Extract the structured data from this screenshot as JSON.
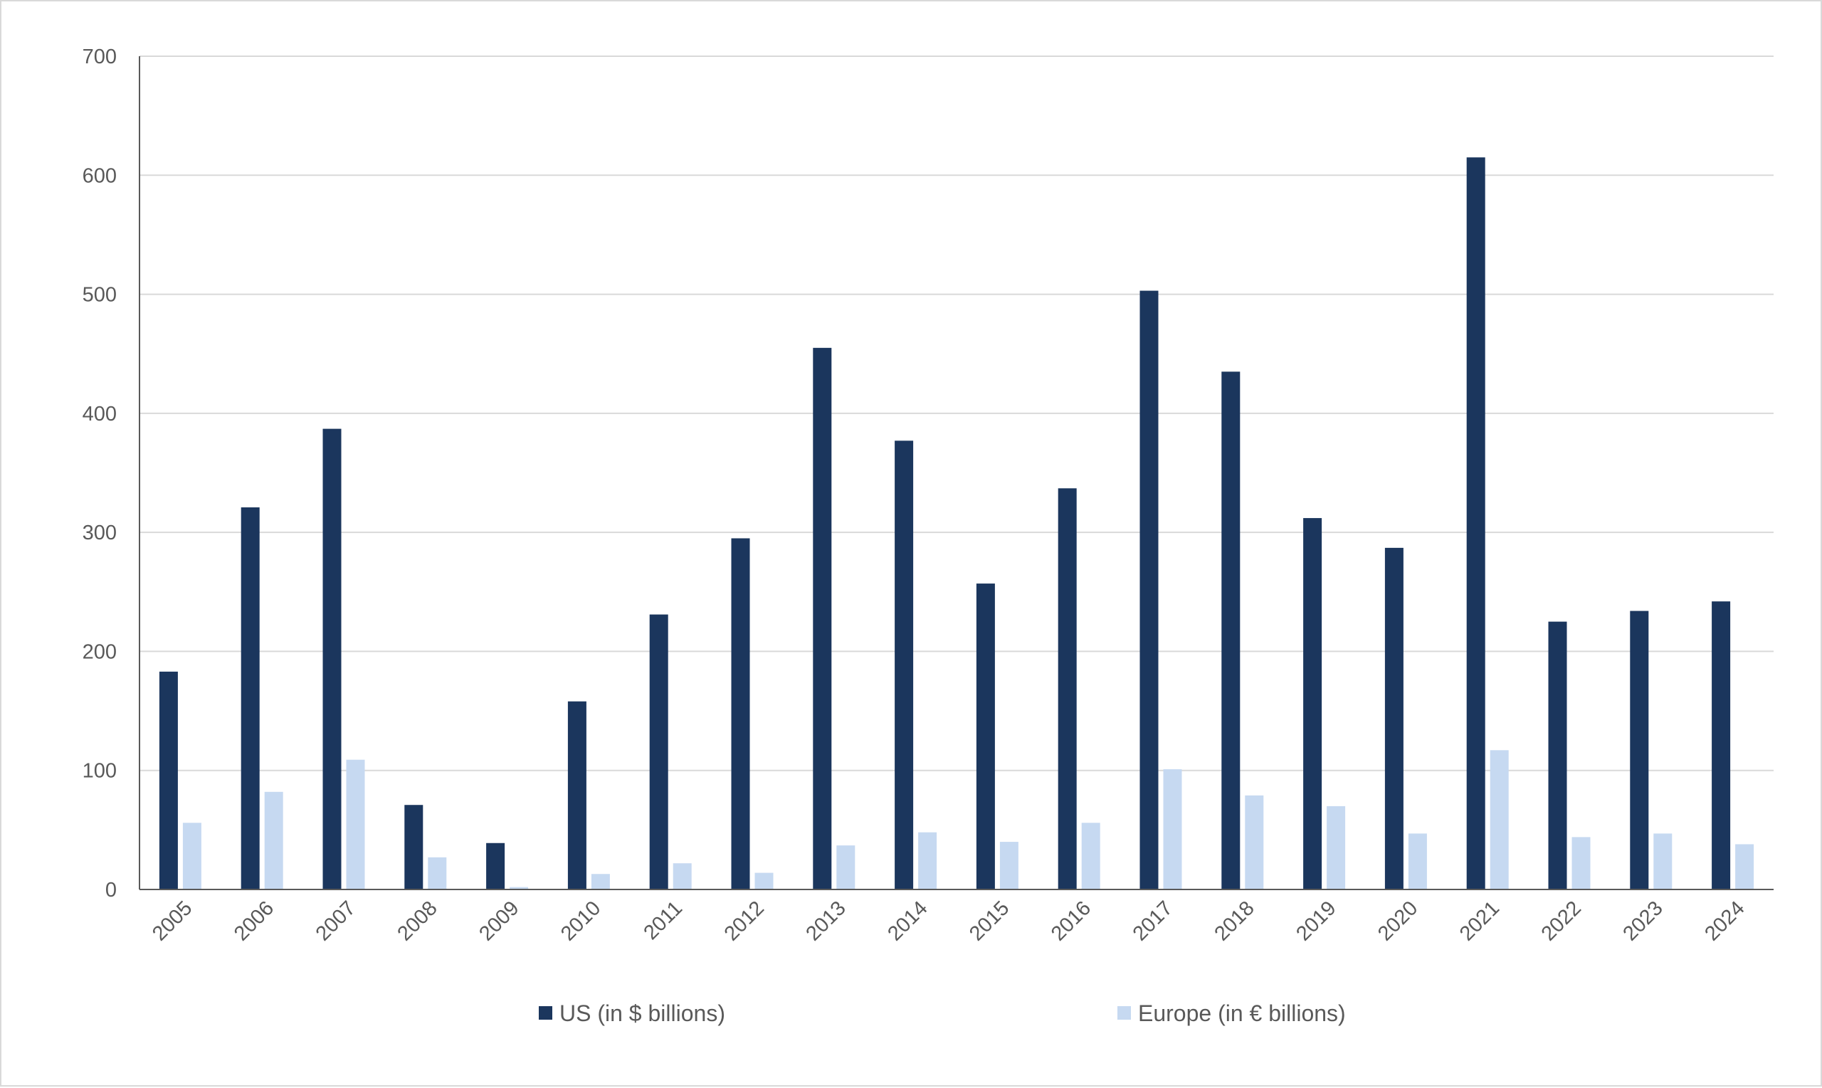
{
  "chart_data": {
    "type": "bar",
    "title": "",
    "xlabel": "",
    "ylabel": "",
    "ylim": [
      0,
      700
    ],
    "yticks": [
      0,
      100,
      200,
      300,
      400,
      500,
      600,
      700
    ],
    "grid": true,
    "legend_position": "bottom",
    "categories": [
      "2005",
      "2006",
      "2007",
      "2008",
      "2009",
      "2010",
      "2011",
      "2012",
      "2013",
      "2014",
      "2015",
      "2016",
      "2017",
      "2018",
      "2019",
      "2020",
      "2021",
      "2022",
      "2023",
      "2024"
    ],
    "series": [
      {
        "name": "US (in $ billions)",
        "color": "#1b365d",
        "values": [
          183,
          321,
          387,
          71,
          39,
          158,
          231,
          295,
          455,
          377,
          257,
          337,
          503,
          435,
          312,
          287,
          615,
          225,
          234,
          242
        ]
      },
      {
        "name": "Europe (in € billions)",
        "color": "#c6d9f1",
        "values": [
          56,
          82,
          109,
          27,
          2,
          13,
          22,
          14,
          37,
          48,
          40,
          56,
          101,
          79,
          70,
          47,
          117,
          44,
          47,
          38
        ]
      }
    ]
  }
}
